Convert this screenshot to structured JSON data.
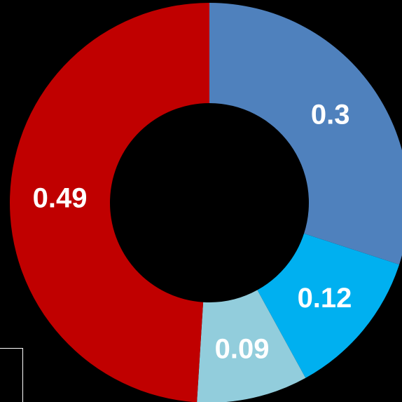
{
  "chart_data": {
    "type": "pie",
    "variant": "donut",
    "title": "",
    "categories": [
      "",
      "",
      "",
      ""
    ],
    "values": [
      0.3,
      0.12,
      0.09,
      0.49
    ],
    "labels": [
      "0.3",
      "0.12",
      "0.09",
      "0.49"
    ],
    "colors": [
      "#4F81BD",
      "#00B0F0",
      "#92CDDC",
      "#C00000"
    ],
    "legend": "none"
  },
  "background_color": "#000000",
  "label_color": "#FFFFFF"
}
